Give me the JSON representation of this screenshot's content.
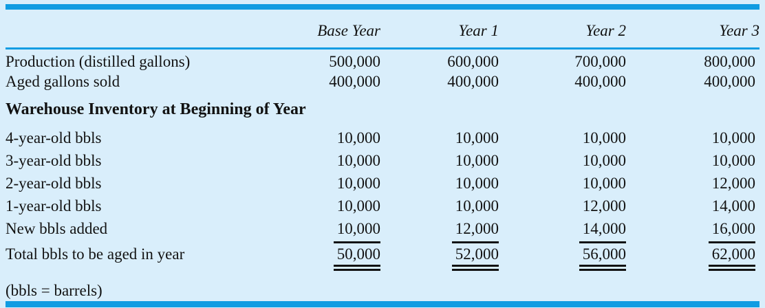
{
  "table": {
    "column_headers": [
      "Base Year",
      "Year 1",
      "Year 2",
      "Year 3"
    ],
    "rows_top": [
      {
        "label": "Production (distilled gallons)",
        "values": [
          "500,000",
          "600,000",
          "700,000",
          "800,000"
        ]
      },
      {
        "label": "Aged gallons sold",
        "values": [
          "400,000",
          "400,000",
          "400,000",
          "400,000"
        ]
      }
    ],
    "section_header": "Warehouse Inventory at Beginning of Year",
    "inventory_rows": [
      {
        "label": "4-year-old bbls",
        "values": [
          "10,000",
          "10,000",
          "10,000",
          "10,000"
        ]
      },
      {
        "label": "3-year-old bbls",
        "values": [
          "10,000",
          "10,000",
          "10,000",
          "10,000"
        ]
      },
      {
        "label": "2-year-old bbls",
        "values": [
          "10,000",
          "10,000",
          "10,000",
          "12,000"
        ]
      },
      {
        "label": "1-year-old bbls",
        "values": [
          "10,000",
          "10,000",
          "12,000",
          "14,000"
        ]
      },
      {
        "label": "New bbls added",
        "values": [
          "10,000",
          "12,000",
          "14,000",
          "16,000"
        ]
      }
    ],
    "total_row": {
      "label": "Total bbls to be aged in year",
      "values": [
        "50,000",
        "52,000",
        "56,000",
        "62,000"
      ]
    },
    "footnote": "(bbls = barrels)"
  },
  "colors": {
    "background": "#d9eefb",
    "rule_blue": "#109ce2",
    "text": "#121212"
  }
}
